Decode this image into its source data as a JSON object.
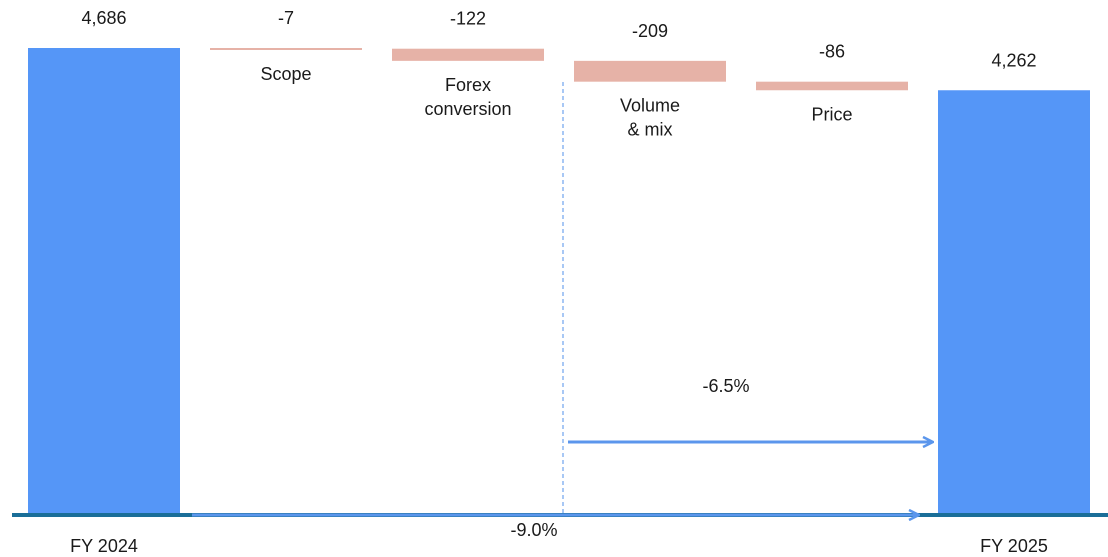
{
  "chart_data": {
    "type": "bar",
    "subtype": "waterfall",
    "title": "",
    "categories": [
      "FY 2024",
      "Scope",
      "Forex conversion",
      "Volume & mix",
      "Price",
      "FY 2025"
    ],
    "category_label_lines": [
      [
        "FY 2024"
      ],
      [
        "Scope"
      ],
      [
        "Forex",
        "conversion"
      ],
      [
        "Volume",
        "& mix"
      ],
      [
        "Price"
      ],
      [
        "FY 2025"
      ]
    ],
    "values": [
      4686,
      -7,
      -122,
      -209,
      -86,
      4262
    ],
    "value_labels": [
      "4,686",
      "-7",
      "-122",
      "-209",
      "-86",
      "4,262"
    ],
    "bar_kinds": [
      "total",
      "delta",
      "delta",
      "delta",
      "delta",
      "total"
    ],
    "ylim": [
      0,
      4686
    ],
    "annotations": {
      "organic_change": "-6.5%",
      "total_change": "-9.0%"
    },
    "colors": {
      "total": "#5596f7",
      "delta": "#e6b2a7",
      "baseline": "#1a6e98",
      "arrow": "#5b96ec",
      "divider": "#6fa3ee",
      "text": "#1a1a1a"
    }
  }
}
